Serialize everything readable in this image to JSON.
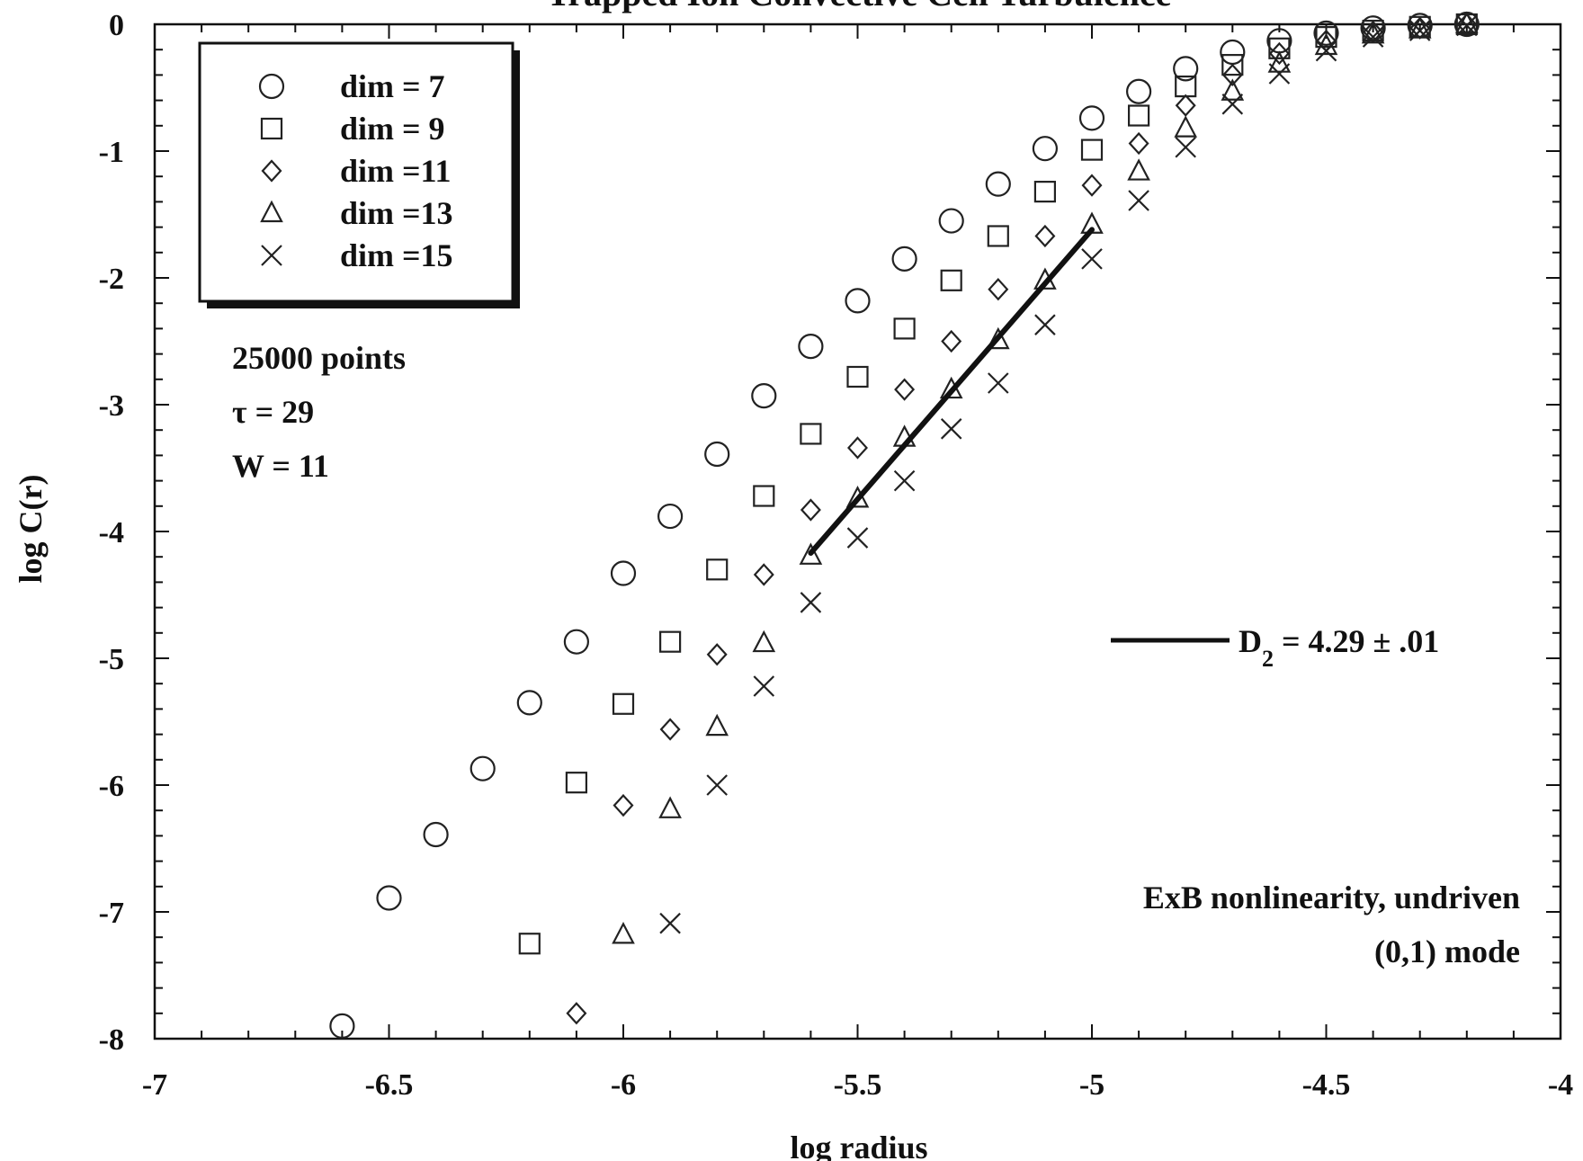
{
  "chart_data": {
    "type": "scatter",
    "title": "Trapped Ion Convective Cell Turbulence",
    "xlabel": "log radius",
    "ylabel": "log C(r)",
    "xlim": [
      -7,
      -4
    ],
    "ylim": [
      -8,
      0
    ],
    "x_ticks": [
      "-7",
      "-6.5",
      "-6",
      "-5.5",
      "-5",
      "-4.5",
      "-4"
    ],
    "y_ticks": [
      "0",
      "-1",
      "-2",
      "-3",
      "-4",
      "-5",
      "-6",
      "-7",
      "-8"
    ],
    "grid": false,
    "legend_position": "top-left",
    "series": [
      {
        "name": "dim = 7",
        "marker": "circle",
        "x": [
          -6.6,
          -6.5,
          -6.4,
          -6.3,
          -6.2,
          -6.1,
          -6.0,
          -5.9,
          -5.8,
          -5.7,
          -5.6,
          -5.5,
          -5.4,
          -5.3,
          -5.2,
          -5.1,
          -5.0,
          -4.9,
          -4.8,
          -4.7,
          -4.6,
          -4.5,
          -4.4,
          -4.3,
          -4.2
        ],
        "y": [
          -7.9,
          -6.89,
          -6.39,
          -5.87,
          -5.35,
          -4.87,
          -4.33,
          -3.88,
          -3.39,
          -2.93,
          -2.54,
          -2.18,
          -1.85,
          -1.55,
          -1.26,
          -0.98,
          -0.74,
          -0.53,
          -0.35,
          -0.22,
          -0.13,
          -0.07,
          -0.03,
          -0.01,
          0.0
        ]
      },
      {
        "name": "dim = 9",
        "marker": "square",
        "x": [
          -6.2,
          -6.1,
          -6.0,
          -5.9,
          -5.8,
          -5.7,
          -5.6,
          -5.5,
          -5.4,
          -5.3,
          -5.2,
          -5.1,
          -5.0,
          -4.9,
          -4.8,
          -4.7,
          -4.6,
          -4.5,
          -4.4,
          -4.3,
          -4.2
        ],
        "y": [
          -7.25,
          -5.98,
          -5.36,
          -4.87,
          -4.3,
          -3.72,
          -3.23,
          -2.78,
          -2.4,
          -2.02,
          -1.67,
          -1.32,
          -0.99,
          -0.72,
          -0.49,
          -0.32,
          -0.19,
          -0.1,
          -0.05,
          -0.02,
          0.0
        ]
      },
      {
        "name": "dim =11",
        "marker": "diamond",
        "x": [
          -6.1,
          -6.0,
          -5.9,
          -5.8,
          -5.7,
          -5.6,
          -5.5,
          -5.4,
          -5.3,
          -5.2,
          -5.1,
          -5.0,
          -4.9,
          -4.8,
          -4.7,
          -4.6,
          -4.5,
          -4.4,
          -4.3,
          -4.2
        ],
        "y": [
          -7.8,
          -6.16,
          -5.56,
          -4.97,
          -4.34,
          -3.83,
          -3.34,
          -2.88,
          -2.5,
          -2.09,
          -1.67,
          -1.27,
          -0.94,
          -0.64,
          -0.4,
          -0.23,
          -0.13,
          -0.06,
          -0.03,
          0.0
        ]
      },
      {
        "name": "dim =13",
        "marker": "triangle",
        "x": [
          -6.0,
          -5.9,
          -5.8,
          -5.7,
          -5.6,
          -5.5,
          -5.4,
          -5.3,
          -5.2,
          -5.1,
          -5.0,
          -4.9,
          -4.8,
          -4.7,
          -4.6,
          -4.5,
          -4.4,
          -4.3,
          -4.2
        ],
        "y": [
          -7.18,
          -6.19,
          -5.54,
          -4.88,
          -4.19,
          -3.74,
          -3.26,
          -2.88,
          -2.49,
          -2.02,
          -1.58,
          -1.16,
          -0.82,
          -0.53,
          -0.31,
          -0.17,
          -0.08,
          -0.04,
          0.0
        ]
      },
      {
        "name": "dim =15",
        "marker": "x",
        "x": [
          -5.9,
          -5.8,
          -5.7,
          -5.6,
          -5.5,
          -5.4,
          -5.3,
          -5.2,
          -5.1,
          -5.0,
          -4.9,
          -4.8,
          -4.7,
          -4.6,
          -4.5,
          -4.4,
          -4.3,
          -4.2
        ],
        "y": [
          -7.09,
          -6.0,
          -5.22,
          -4.56,
          -4.05,
          -3.6,
          -3.19,
          -2.83,
          -2.37,
          -1.85,
          -1.39,
          -0.97,
          -0.63,
          -0.39,
          -0.21,
          -0.1,
          -0.05,
          -0.01
        ]
      }
    ],
    "fit_line": {
      "x": [
        -5.6,
        -5.0
      ],
      "y": [
        -4.17,
        -1.62
      ],
      "label_main": "D",
      "label_sub": "2",
      "label_rest": " = 4.29 ± .01"
    },
    "annotations": {
      "info_lines": [
        "25000  points",
        "τ = 29",
        "W = 11"
      ],
      "note_lines": [
        "ExB  nonlinearity,  undriven",
        "(0,1)  mode"
      ]
    }
  }
}
